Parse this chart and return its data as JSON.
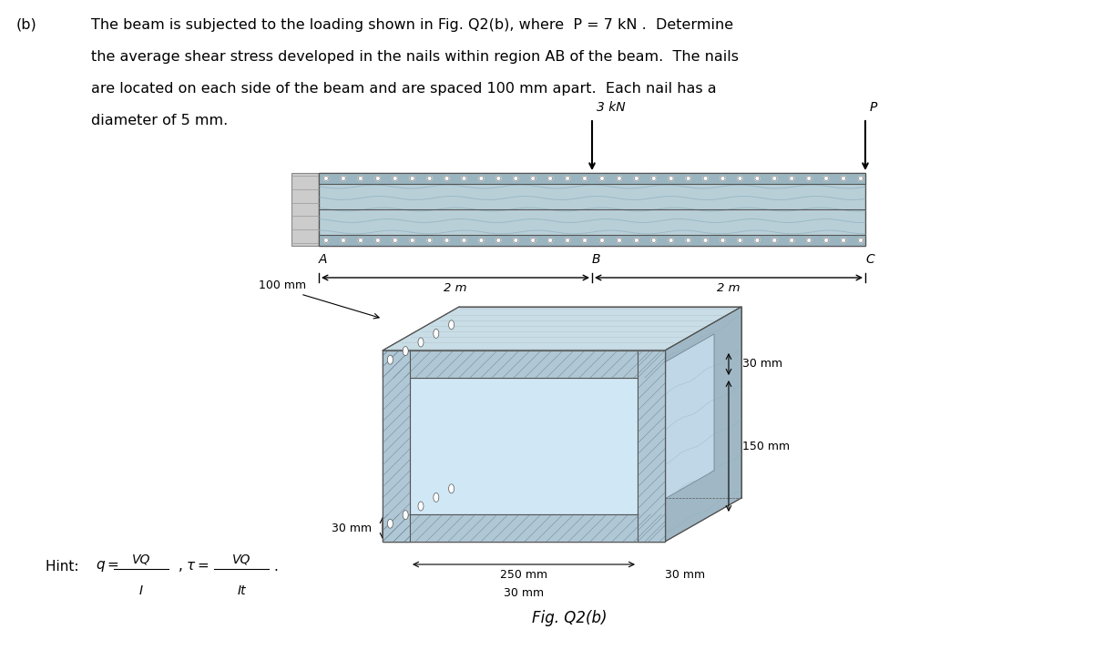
{
  "title_b": "(b)",
  "problem_text_line1": "The beam is subjected to the loading shown in Fig. Q2(b), where  P = 7 kN .  Determine",
  "problem_text_line2": "the average shear stress developed in the nails within region AB of the beam.  The nails",
  "problem_text_line3": "are located on each side of the beam and are spaced 100 mm apart.  Each nail has a",
  "problem_text_line4": "diameter of 5 mm.",
  "hint_text": "Hint:  q = VQ/I ,  τ = VQ/It .",
  "load1_label": "3 kN",
  "load2_label": "P",
  "label_A": "A",
  "label_B": "B",
  "label_C": "C",
  "dim_2m_left": "2 m",
  "dim_2m_right": "2 m",
  "cross_section_100mm": "100 mm",
  "cross_section_30mm_flange": "30 mm",
  "cross_section_150mm": "150 mm",
  "cross_section_250mm": "250 mm",
  "cross_section_30mm_web": "30 mm",
  "cross_section_30mm_bottom": "30 mm",
  "fig_label": "Fig. Q2(b)",
  "bg_color": "#ffffff",
  "beam_fill_color": "#b8cfd8",
  "beam_texture_color": "#8aabb8",
  "beam_border_color": "#555555",
  "wood_grain_color": "#c8dde6",
  "nail_hole_color": "#aaaaaa",
  "cross_sec_wood_color": "#b8cfd8",
  "cross_sec_hatch_color": "#8899aa",
  "cross_sec_inner_color": "#d0e8f0"
}
